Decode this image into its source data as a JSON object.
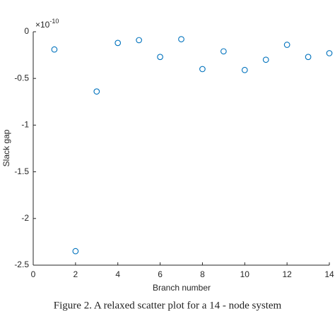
{
  "chart_data": {
    "type": "scatter",
    "x_label": "Branch number",
    "y_label": "Slack gap",
    "y_multiplier_base": "×10",
    "y_multiplier_exponent": "-10",
    "caption": "Figure 2. A relaxed scatter plot for a 14 - node system",
    "x": [
      1,
      2,
      3,
      4,
      5,
      6,
      7,
      8,
      9,
      10,
      11,
      12,
      13,
      14
    ],
    "series": [
      {
        "color": "#0072bd",
        "values": [
          -0.19,
          -2.35,
          -0.64,
          -0.12,
          -0.09,
          -0.27,
          -0.08,
          -0.4,
          -0.21,
          -0.41,
          -0.3,
          -0.14,
          -0.27,
          -0.23
        ]
      }
    ],
    "xlim": [
      0,
      14
    ],
    "xticks": [
      0,
      2,
      4,
      6,
      8,
      10,
      12,
      14
    ],
    "ylim": [
      -2.5,
      0
    ],
    "yticks": [
      0,
      -0.5,
      -1,
      -1.5,
      -2,
      -2.5
    ],
    "grid": false
  }
}
